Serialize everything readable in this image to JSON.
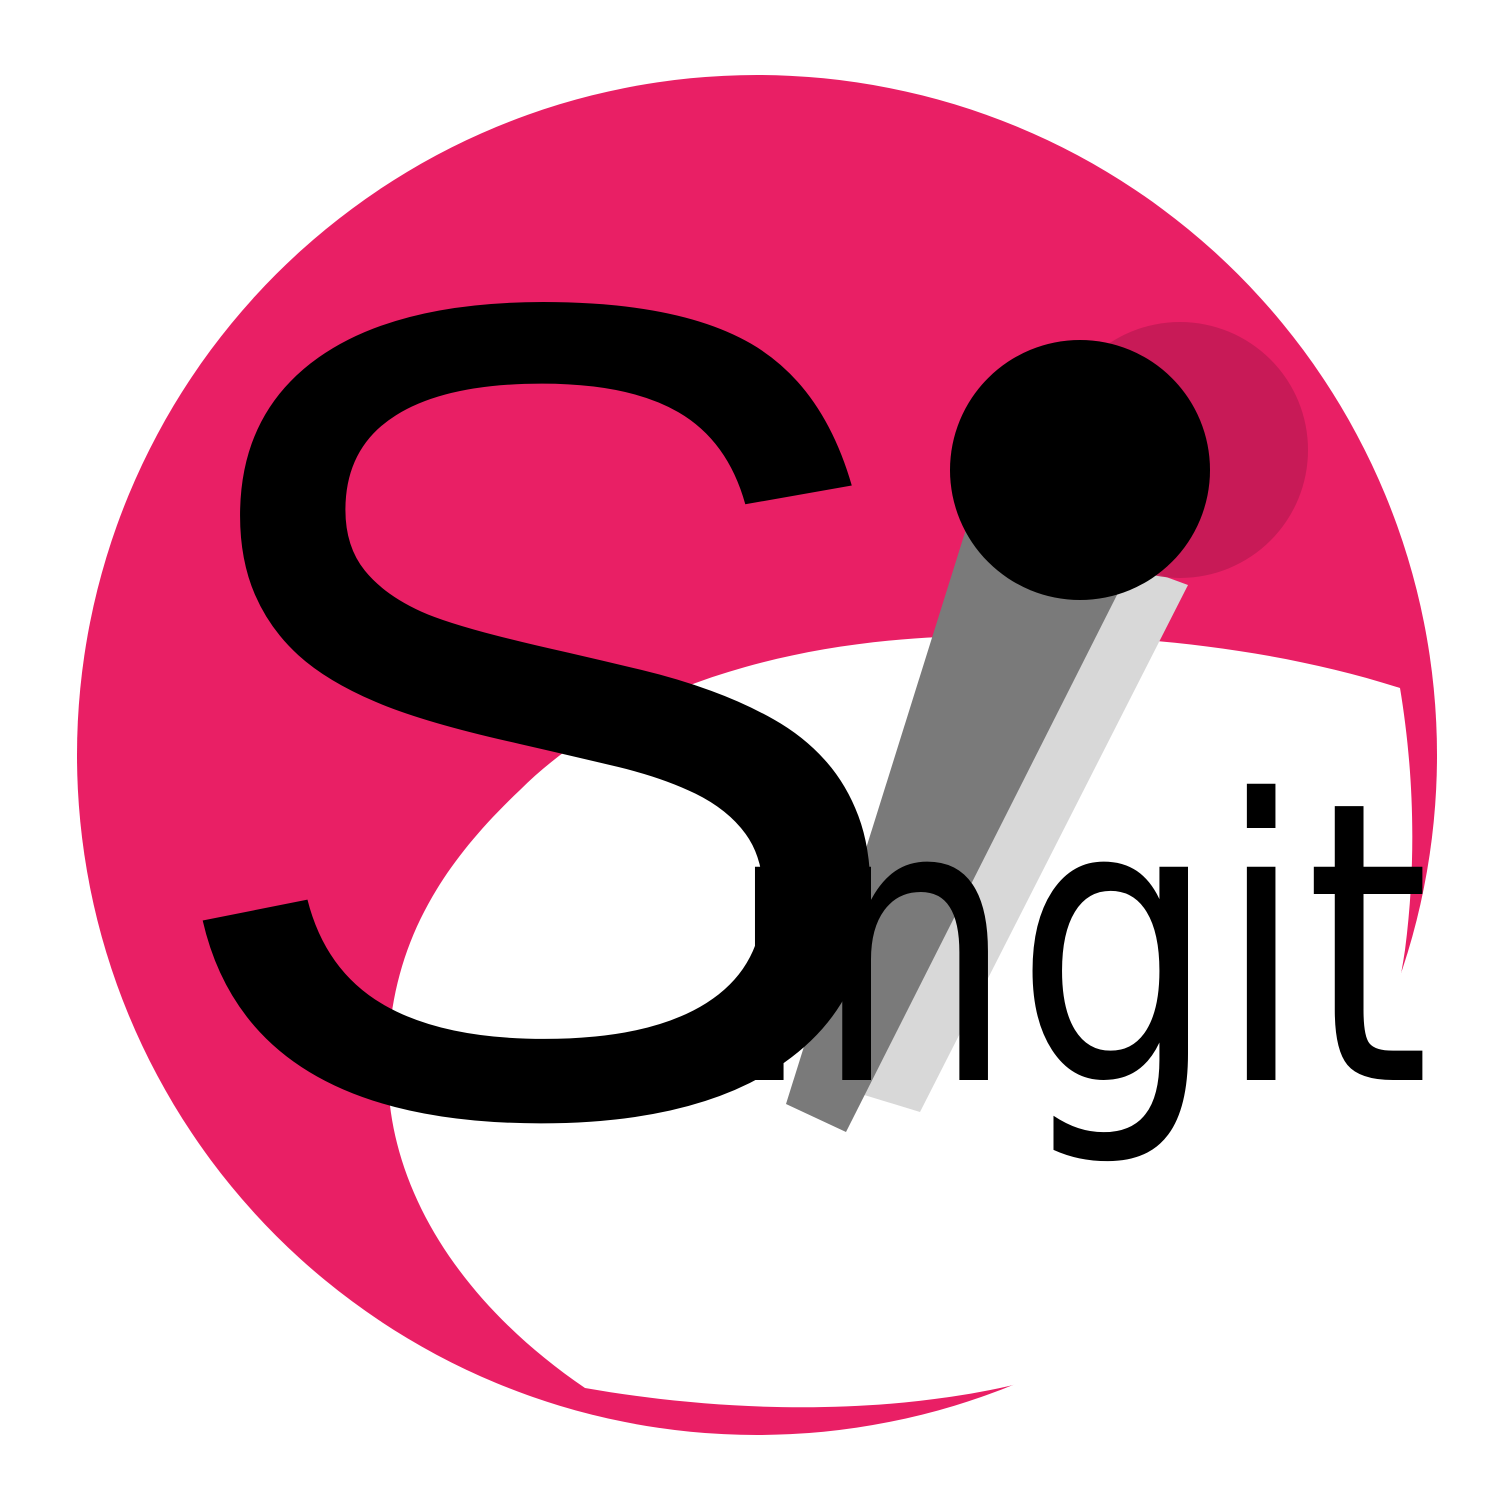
{
  "logo": {
    "initial": "S",
    "rest": "ingit",
    "colors": {
      "circle": "#e91f65",
      "inner": "#ffffff",
      "text": "#000000",
      "stick": "#7a7a7a",
      "stick_shadow": "#d8d8d8",
      "ball": "#000000",
      "ball_shadow": "#c41a55"
    }
  }
}
